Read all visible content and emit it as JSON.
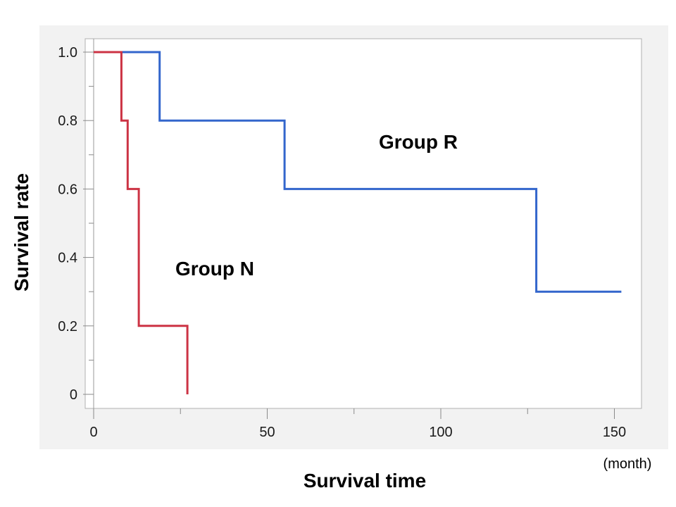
{
  "chart_data": {
    "type": "line",
    "subtype": "kaplan-meier step",
    "xlabel": "Survival time",
    "x_unit": "(month)",
    "ylabel": "Survival rate",
    "xlim": [
      0,
      158
    ],
    "ylim": [
      -0.05,
      1.08
    ],
    "xticks": [
      0,
      50,
      100,
      150
    ],
    "yticks": [
      0,
      0.2,
      0.4,
      0.6,
      0.8,
      1.0
    ],
    "ytick_labels": [
      "0",
      "0.2",
      "0.4",
      "0.6",
      "0.8",
      "1.0"
    ],
    "grid": false,
    "series": [
      {
        "name": "Group R",
        "color": "#3366cc",
        "x": [
          0,
          19,
          19,
          55,
          55,
          127.5,
          127.5,
          152
        ],
        "y": [
          1.0,
          1.0,
          0.8,
          0.8,
          0.6,
          0.6,
          0.3,
          0.3
        ]
      },
      {
        "name": "Group N",
        "color": "#cc3344",
        "x": [
          0,
          8,
          8,
          9.8,
          9.8,
          13,
          13,
          27,
          27
        ],
        "y": [
          1.0,
          1.0,
          0.8,
          0.8,
          0.6,
          0.6,
          0.2,
          0.2,
          0.0
        ]
      }
    ]
  }
}
